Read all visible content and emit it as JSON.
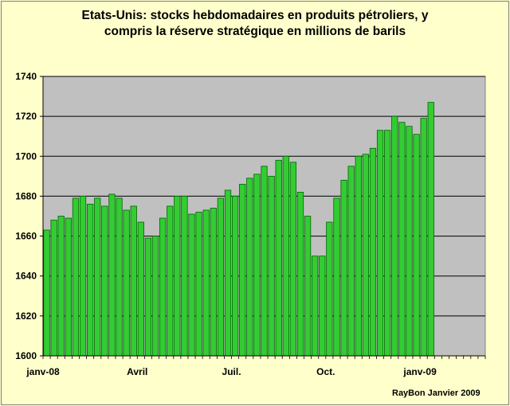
{
  "chart_data": {
    "type": "bar",
    "title_line1": "Etats-Unis: stocks hebdomadaires en produits pétroliers, y",
    "title_line2": "compris la réserve stratégique  en millions de barils",
    "credit": "RayBon  Janvier  2009",
    "ylim": [
      1600,
      1740
    ],
    "yticks": [
      1600,
      1620,
      1640,
      1660,
      1680,
      1700,
      1720,
      1740
    ],
    "x_labels": [
      {
        "label": "janv-08",
        "week": 0
      },
      {
        "label": "Avril",
        "week": 13
      },
      {
        "label": "Juil.",
        "week": 26
      },
      {
        "label": "Oct.",
        "week": 39
      },
      {
        "label": "janv-09",
        "week": 52
      }
    ],
    "total_slots": 61,
    "grid": true,
    "colors": {
      "bar": "#33cc33",
      "bar_edge": "#006600",
      "plot_bg": "#c0c0c0",
      "page_bg": "#ffffcc"
    },
    "values": [
      1663,
      1668,
      1670,
      1669,
      1679,
      1680,
      1676,
      1679,
      1675,
      1681,
      1679,
      1673,
      1675,
      1667,
      1659,
      1660,
      1669,
      1675,
      1680,
      1680,
      1671,
      1672,
      1673,
      1674,
      1679,
      1683,
      1680,
      1686,
      1689,
      1691,
      1695,
      1690,
      1698,
      1700,
      1697,
      1682,
      1670,
      1650,
      1650,
      1667,
      1679,
      1688,
      1695,
      1700,
      1701,
      1704,
      1713,
      1713,
      1720,
      1717,
      1715,
      1711,
      1719,
      1727
    ]
  }
}
